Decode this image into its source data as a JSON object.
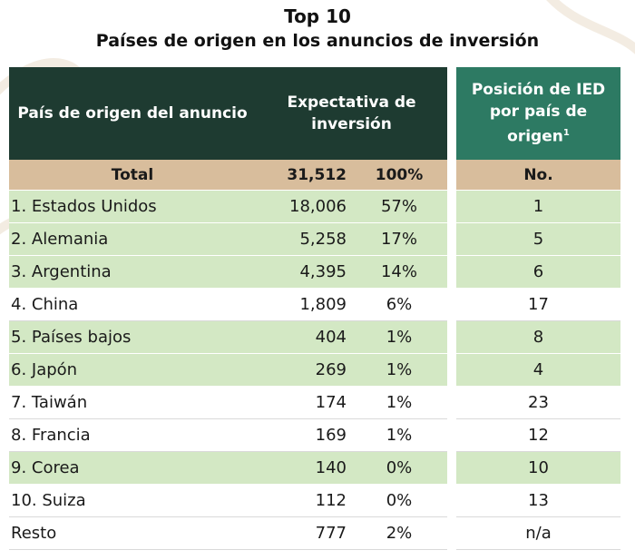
{
  "title": "Top 10",
  "subtitle": "Países de origen en los anuncios de inversión",
  "headers": {
    "country": "País de origen del anuncio",
    "expectation": "Expectativa de inversión",
    "position": "Posición de IED por país de origen",
    "position_footnote": "1"
  },
  "total_row": {
    "label": "Total",
    "value": "31,512",
    "pct": "100%",
    "position": "No."
  },
  "rows": [
    {
      "country": "1. Estados Unidos",
      "value": "18,006",
      "pct": "57%",
      "position": "1"
    },
    {
      "country": "2. Alemania",
      "value": "5,258",
      "pct": "17%",
      "position": "5"
    },
    {
      "country": "3. Argentina",
      "value": "4,395",
      "pct": "14%",
      "position": "6"
    },
    {
      "country": "4. China",
      "value": "1,809",
      "pct": "6%",
      "position": "17"
    },
    {
      "country": "5. Países bajos",
      "value": "404",
      "pct": "1%",
      "position": "8"
    },
    {
      "country": "6. Japón",
      "value": "269",
      "pct": "1%",
      "position": "4"
    },
    {
      "country": "7. Taiwán",
      "value": "174",
      "pct": "1%",
      "position": "23"
    },
    {
      "country": "8. Francia",
      "value": "169",
      "pct": "1%",
      "position": "12"
    },
    {
      "country": "9. Corea",
      "value": "140",
      "pct": "0%",
      "position": "10"
    },
    {
      "country": "10. Suiza",
      "value": "112",
      "pct": "0%",
      "position": "13"
    },
    {
      "country": "Resto",
      "value": "777",
      "pct": "2%",
      "position": "n/a"
    }
  ],
  "colors": {
    "header_dark": "#1e3b31",
    "header_teal": "#2d7a63",
    "total_tan": "#d8bd9c",
    "row_green": "#d3e8c4"
  }
}
